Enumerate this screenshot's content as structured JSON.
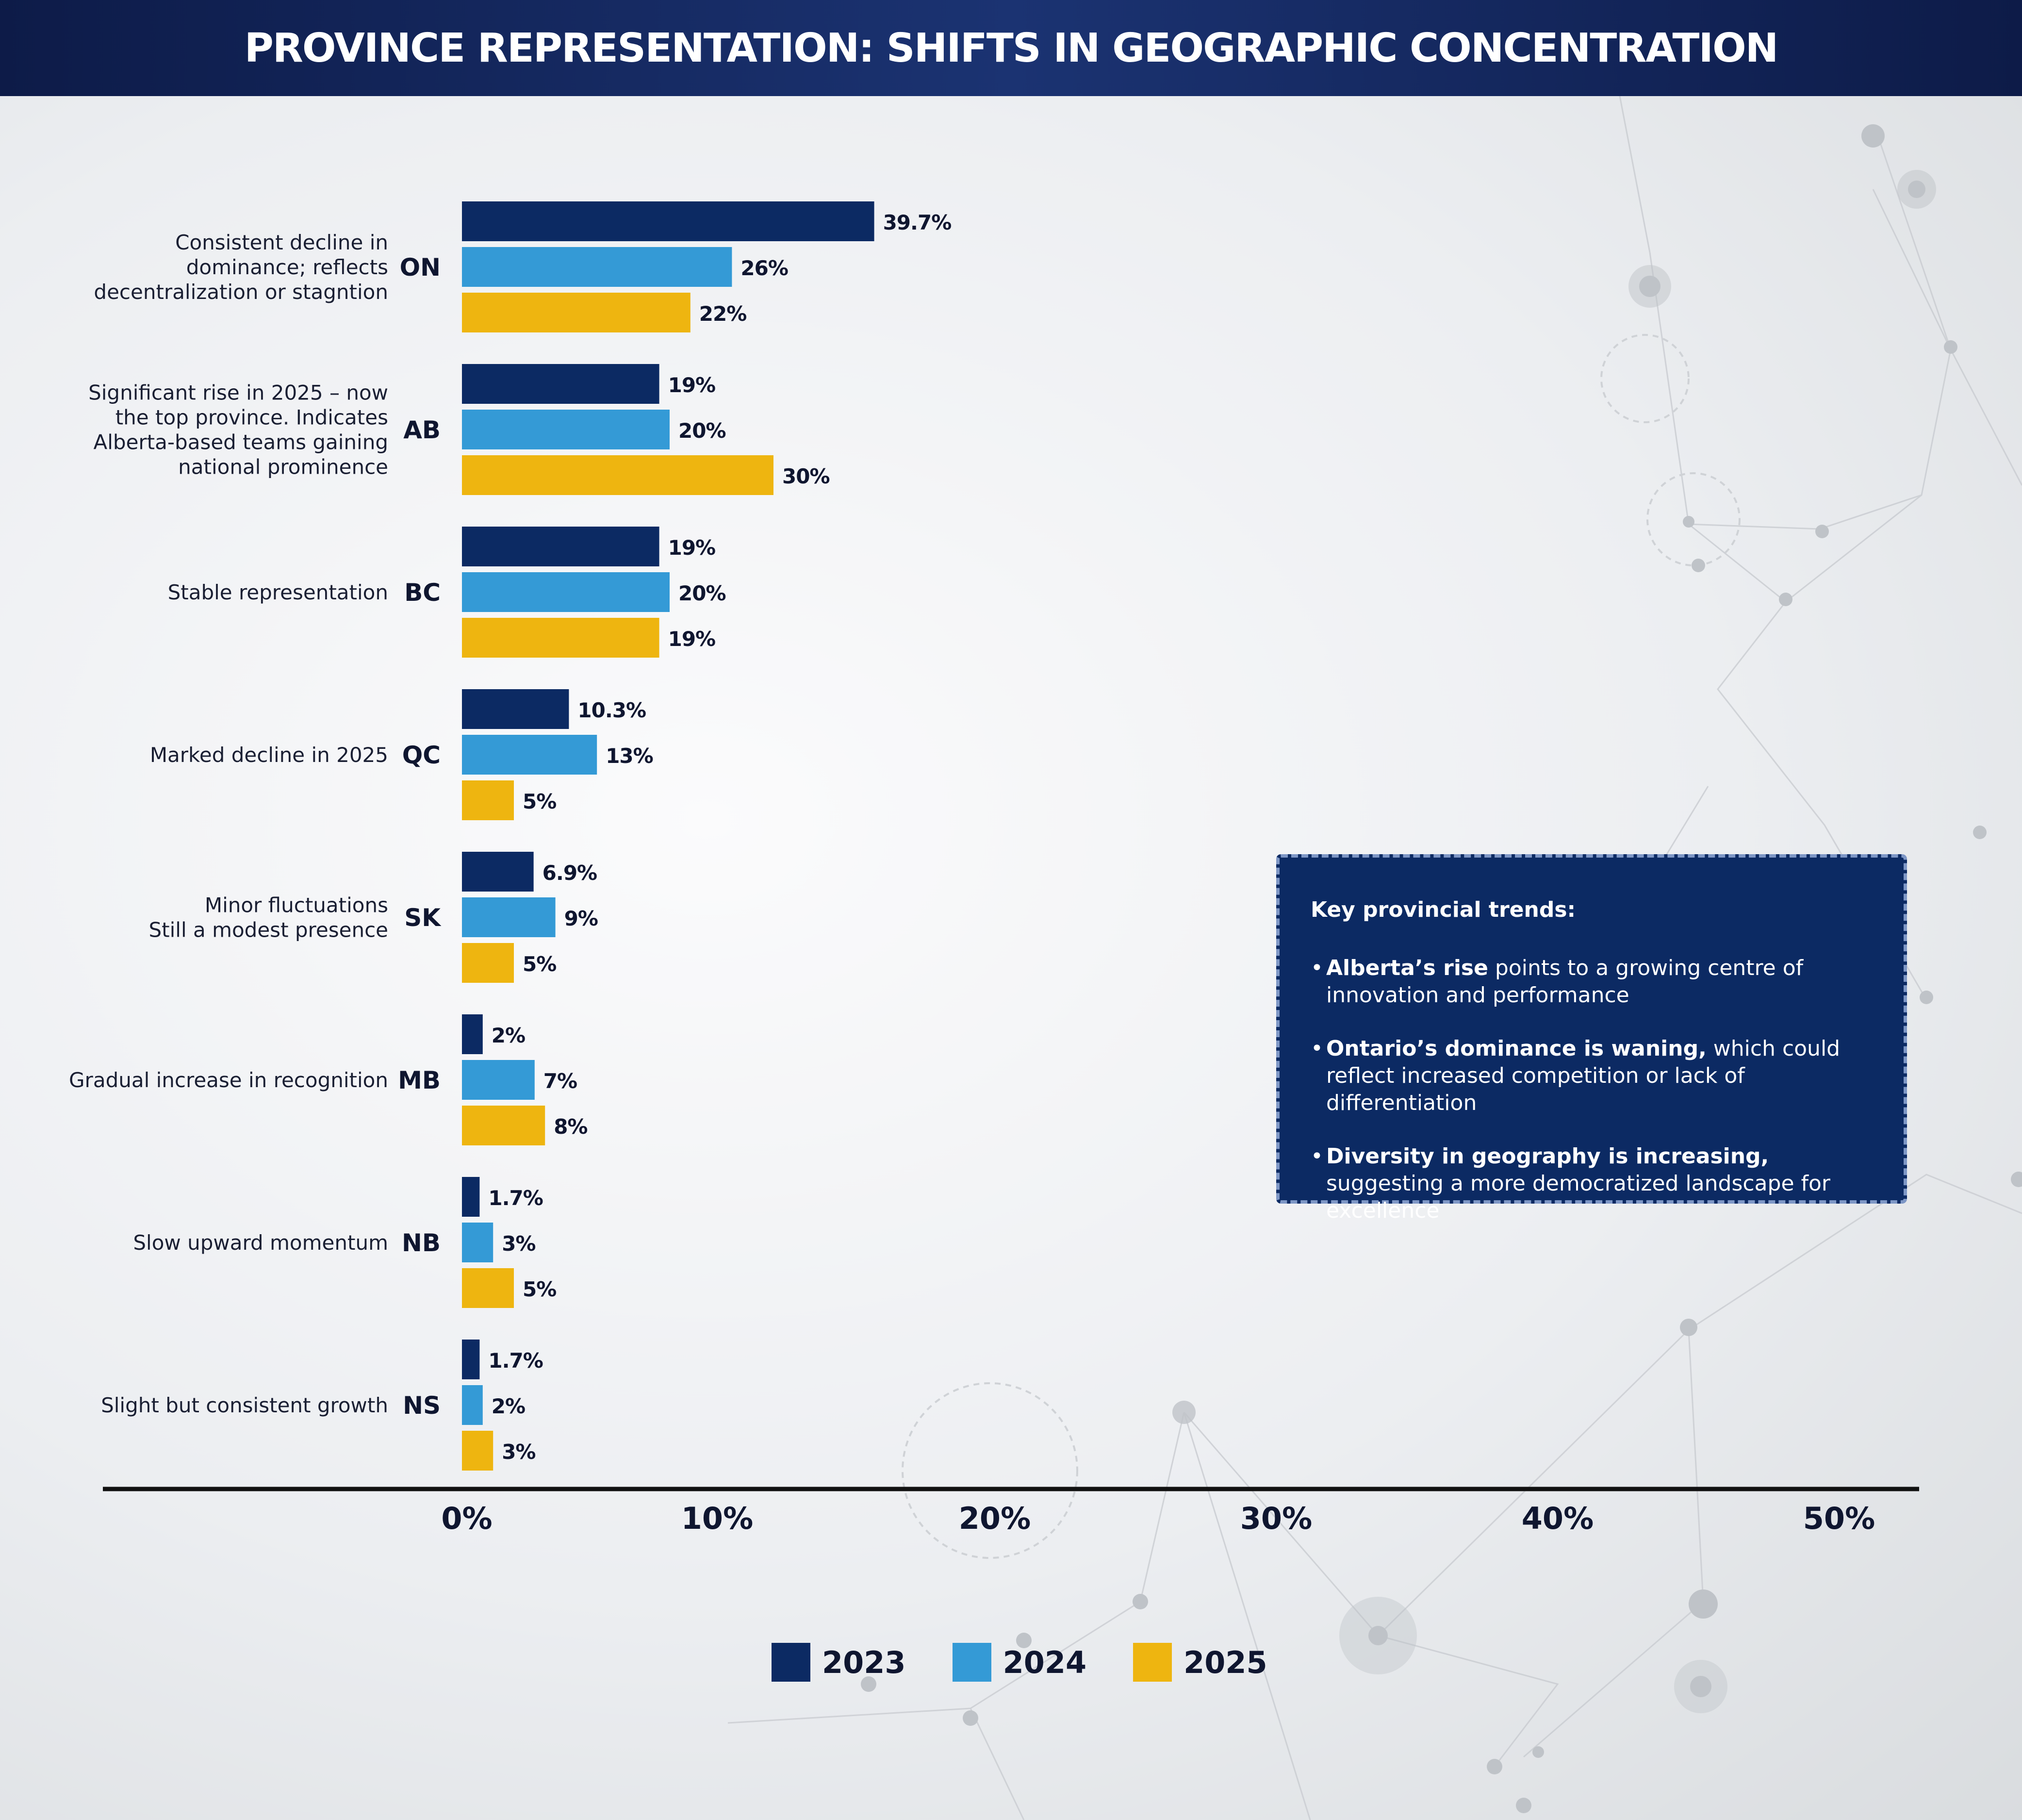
{
  "title": "PROVINCE REPRESENTATION: SHIFTS IN GEOGRAPHIC CONCENTRATION",
  "colors": {
    "2023": "#0c2a63",
    "2024": "#349ad6",
    "2025": "#eeb510",
    "header": "#13245a",
    "callout": "#0c2a63"
  },
  "chart_data": {
    "type": "bar",
    "orientation": "horizontal",
    "categories": [
      "ON",
      "AB",
      "BC",
      "QC",
      "SK",
      "MB",
      "NB",
      "NS"
    ],
    "annotations": [
      "Consistent decline in\ndominance; reflects\ndecentralization or stagntion",
      "Significant rise in 2025 – now\nthe top province. Indicates\nAlberta-based teams gaining\nnational prominence",
      "Stable representation",
      "Marked decline in 2025",
      "Minor fluctuations\nStill a modest presence",
      "Gradual increase in recognition",
      "Slow upward momentum",
      "Slight but consistent growth"
    ],
    "series": [
      {
        "name": "2023",
        "values": [
          39.7,
          19,
          19,
          10.3,
          6.9,
          2,
          1.7,
          1.7
        ],
        "labels": [
          "39.7%",
          "19%",
          "19%",
          "10.3%",
          "6.9%",
          "2%",
          "1.7%",
          "1.7%"
        ]
      },
      {
        "name": "2024",
        "values": [
          26,
          20,
          20,
          13,
          9,
          7,
          3,
          2
        ],
        "labels": [
          "26%",
          "20%",
          "20%",
          "13%",
          "9%",
          "7%",
          "3%",
          "2%"
        ]
      },
      {
        "name": "2025",
        "values": [
          22,
          30,
          19,
          5,
          5,
          8,
          5,
          3
        ],
        "labels": [
          "22%",
          "30%",
          "19%",
          "5%",
          "5%",
          "8%",
          "5%",
          "3%"
        ]
      }
    ],
    "xticks": [
      "0%",
      "10%",
      "20%",
      "30%",
      "40%",
      "50%"
    ],
    "xlim": [
      0,
      50
    ],
    "grid": false,
    "legend_position": "bottom"
  },
  "callout": {
    "title": "Key provincial trends:",
    "items": [
      {
        "bold": "Alberta’s rise",
        "text": " points to a growing centre of innovation and performance"
      },
      {
        "bold": "Ontario’s dominance is waning,",
        "text": " which could reflect increased competition or lack of differentiation"
      },
      {
        "bold": "Diversity in geography is increasing,",
        "text": " suggesting a more democratized landscape for excellence"
      }
    ]
  },
  "legend": [
    {
      "label": "2023"
    },
    {
      "label": "2024"
    },
    {
      "label": "2025"
    }
  ]
}
